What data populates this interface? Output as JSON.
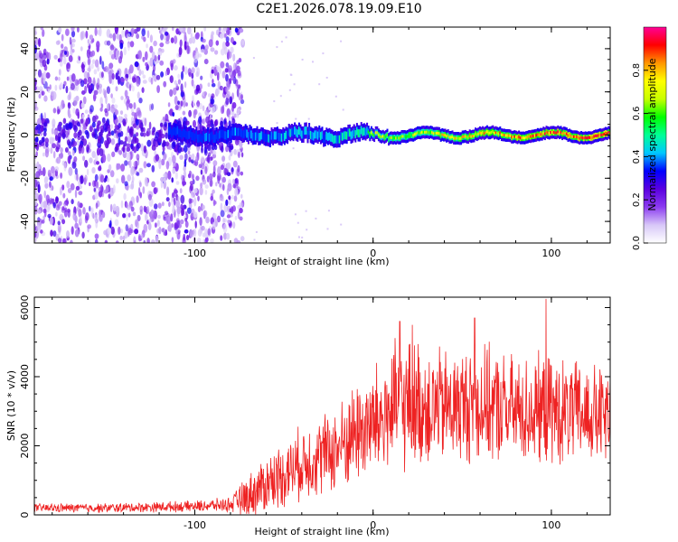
{
  "figure": {
    "title": "C2E1.2026.078.19.09.E10"
  },
  "chart_data": [
    {
      "type": "heatmap",
      "name": "spectrogram",
      "xlabel": "Height of straight line (km)",
      "ylabel": "Frequency (Hz)",
      "xlim": [
        -190,
        133
      ],
      "ylim": [
        -50,
        50
      ],
      "x_ticks": [
        -100,
        0,
        100
      ],
      "x_tick_labels": [
        "-100",
        "0",
        "100"
      ],
      "y_ticks": [
        -40,
        -20,
        0,
        20,
        40
      ],
      "y_tick_labels": [
        "-40",
        "-20",
        "0",
        "20",
        "40"
      ],
      "colorbar": {
        "label": "Normalized spectral amplitude",
        "range": [
          0,
          1
        ],
        "ticks": [
          0.0,
          0.2,
          0.4,
          0.6,
          0.8
        ],
        "tick_labels": [
          "0.0",
          "0.2",
          "0.4",
          "0.6",
          "0.8"
        ],
        "colors": [
          "#ffffff",
          "#d8c8f8",
          "#8c3cf0",
          "#5a00e0",
          "#0000ff",
          "#00c8ff",
          "#00ff96",
          "#00ff00",
          "#c8ff00",
          "#ffff00",
          "#ff9600",
          "#ff0000",
          "#ff0096"
        ]
      },
      "features": [
        {
          "label": "broadband noise region",
          "x_range": [
            -190,
            -73
          ],
          "freq_range": [
            -50,
            50
          ],
          "amplitude": 0.05
        },
        {
          "label": "carrier line",
          "x_range": [
            -115,
            133
          ],
          "center_freq_hz": 0,
          "peak_amplitude_start": 0.3,
          "peak_amplitude_end": 0.95
        }
      ]
    },
    {
      "type": "line",
      "name": "snr",
      "xlabel": "Height of straight line (km)",
      "ylabel": "SNR (10 * v/v)",
      "xlim": [
        -190,
        133
      ],
      "ylim": [
        0,
        6300
      ],
      "x_ticks": [
        -100,
        0,
        100
      ],
      "x_tick_labels": [
        "-100",
        "0",
        "100"
      ],
      "y_ticks": [
        0,
        2000,
        4000,
        6000
      ],
      "y_tick_labels": [
        "0",
        "2000",
        "4000",
        "6000"
      ],
      "color": "#ee2222",
      "envelope": {
        "x": [
          -190,
          -150,
          -100,
          -80,
          -73,
          -60,
          -40,
          -20,
          -10,
          0,
          10,
          20,
          40,
          60,
          80,
          100,
          120,
          133
        ],
        "mean": [
          200,
          200,
          250,
          300,
          450,
          900,
          1500,
          1900,
          2400,
          2600,
          3000,
          3200,
          3100,
          3200,
          3000,
          3000,
          2900,
          2800
        ],
        "spread": [
          120,
          130,
          150,
          200,
          500,
          800,
          1000,
          1200,
          1400,
          1600,
          1800,
          1800,
          1600,
          1600,
          1500,
          1500,
          1400,
          1400
        ],
        "peaks": [
          [
            -75,
            720
          ],
          [
            15,
            5600
          ],
          [
            22,
            5500
          ],
          [
            57,
            5700
          ],
          [
            97,
            6250
          ]
        ]
      }
    }
  ]
}
